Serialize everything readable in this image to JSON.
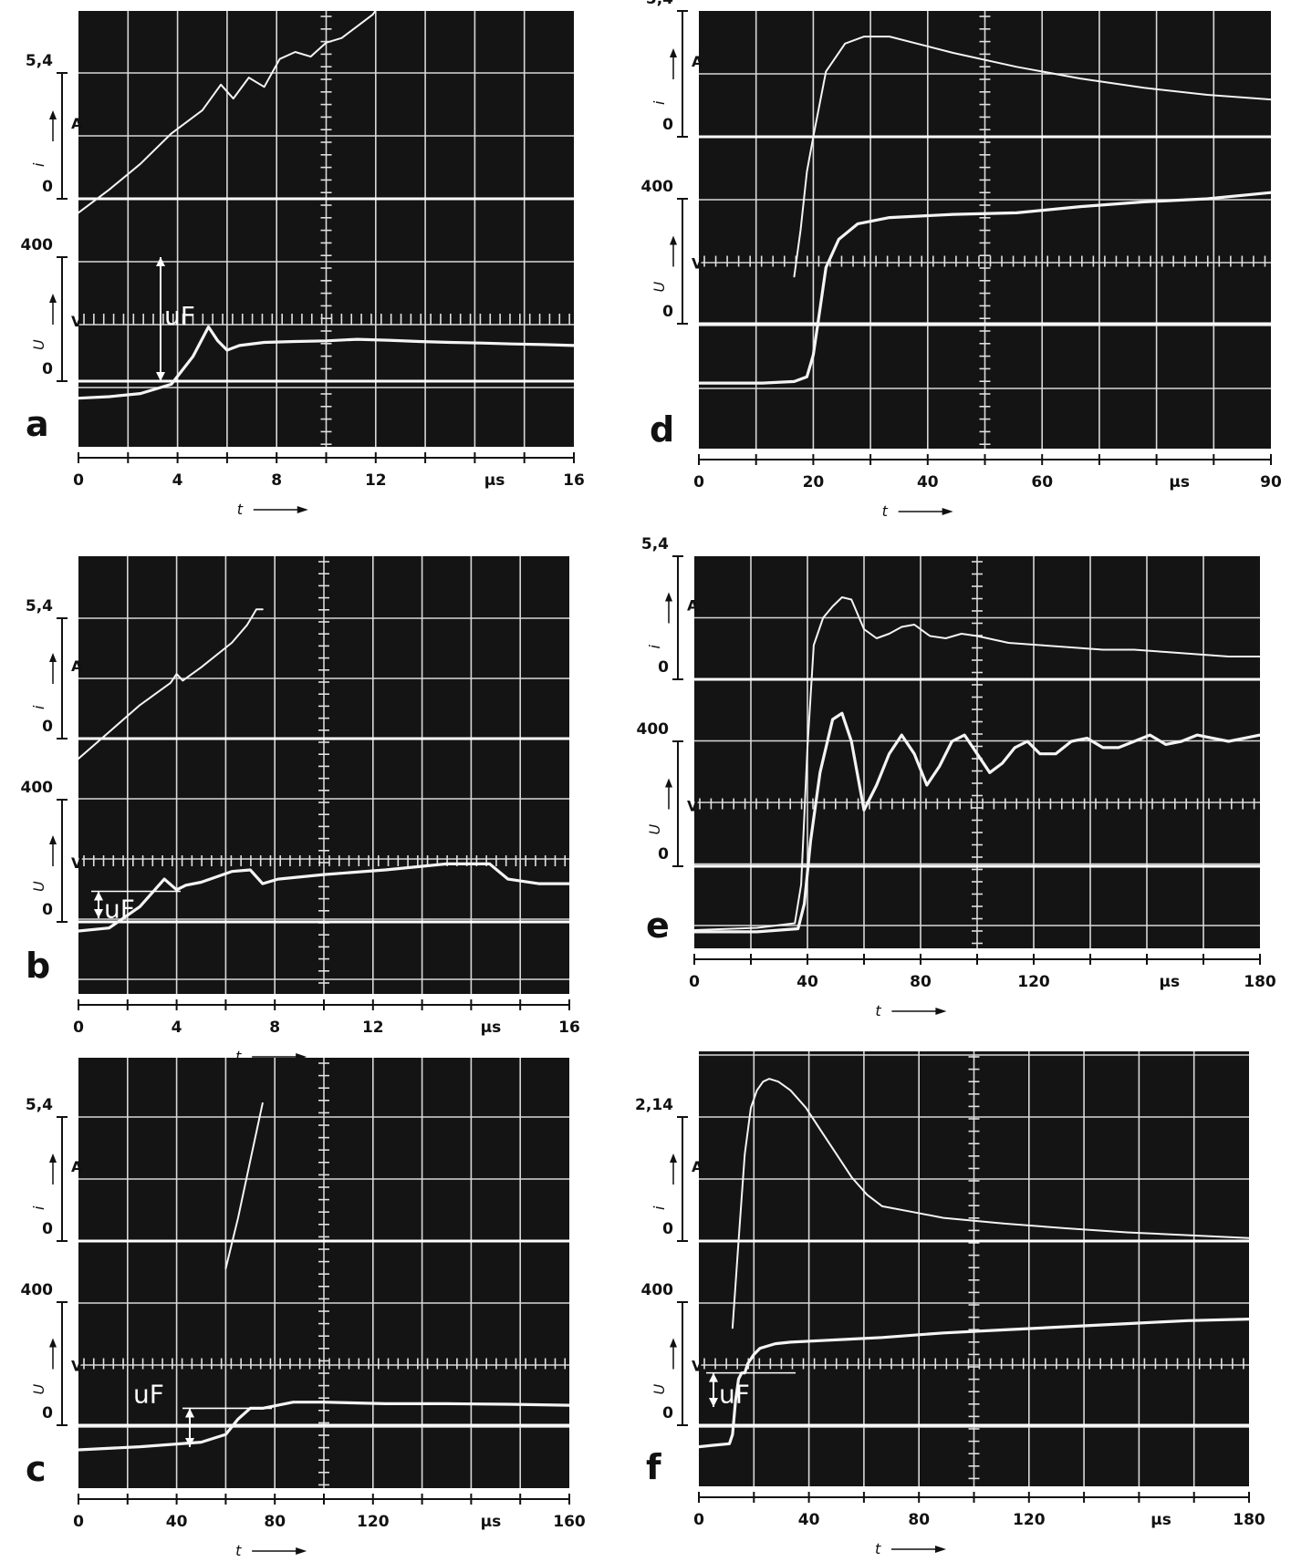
{
  "chart_data": [
    {
      "panel": "a",
      "type": "line",
      "x_ticks": [
        "0",
        "4",
        "8",
        "12",
        "16"
      ],
      "x_unit": "µs",
      "xlabel": "t",
      "xlim": [
        0,
        16
      ],
      "current_axis": {
        "label": "i",
        "unit": "A",
        "ticks": [
          "5,4",
          "0"
        ],
        "ylim": [
          0,
          7.0
        ]
      },
      "voltage_axis": {
        "label": "U",
        "unit": "V",
        "ticks": [
          "400",
          "0"
        ],
        "ylim": [
          -100,
          425
        ]
      },
      "annotation": "uF",
      "series": [
        {
          "quantity": "current",
          "x": [
            0,
            1,
            2,
            3,
            4,
            4.6,
            5,
            5.5,
            6,
            6.5,
            7,
            7.5,
            8,
            8.5,
            9,
            9.5,
            10
          ],
          "y": [
            -0.6,
            0.4,
            1.5,
            2.8,
            3.8,
            4.9,
            4.3,
            5.2,
            4.8,
            6.0,
            6.3,
            6.1,
            6.7,
            6.9,
            7.4,
            7.9,
            8.8
          ]
        },
        {
          "quantity": "voltage",
          "x": [
            0,
            1,
            2,
            3,
            3.7,
            4.2,
            4.5,
            4.8,
            5.2,
            6,
            7,
            8,
            9,
            10,
            11,
            12,
            13,
            14,
            15,
            16
          ],
          "y": [
            -55,
            -50,
            -40,
            -10,
            80,
            175,
            130,
            100,
            115,
            125,
            128,
            130,
            135,
            132,
            128,
            125,
            123,
            120,
            118,
            115
          ]
        }
      ]
    },
    {
      "panel": "b",
      "type": "line",
      "x_ticks": [
        "0",
        "4",
        "8",
        "12",
        "16"
      ],
      "x_unit": "µs",
      "xlabel": "t",
      "xlim": [
        0,
        16
      ],
      "current_axis": {
        "label": "i",
        "unit": "A",
        "ticks": [
          "5,4",
          "0"
        ],
        "ylim": [
          0,
          7.0
        ]
      },
      "voltage_axis": {
        "label": "U",
        "unit": "V",
        "ticks": [
          "400",
          "0"
        ],
        "ylim": [
          -100,
          425
        ]
      },
      "annotation": "uF",
      "series": [
        {
          "quantity": "current",
          "x": [
            0,
            1,
            2,
            3,
            3.2,
            3.4,
            4,
            5,
            5.5,
            5.8,
            6
          ],
          "y": [
            -0.9,
            0.3,
            1.5,
            2.5,
            2.9,
            2.6,
            3.2,
            4.3,
            5.1,
            5.8,
            5.8
          ]
        },
        {
          "quantity": "voltage",
          "x": [
            0,
            1,
            2,
            2.8,
            3.2,
            3.5,
            4,
            5,
            5.6,
            6,
            6.5,
            8,
            10,
            12,
            13.4,
            14,
            15,
            16
          ],
          "y": [
            -30,
            -20,
            50,
            140,
            105,
            120,
            130,
            165,
            170,
            125,
            140,
            155,
            170,
            190,
            190,
            140,
            125,
            125
          ]
        }
      ]
    },
    {
      "panel": "c",
      "type": "line",
      "x_ticks": [
        "0",
        "40",
        "80",
        "120",
        "160"
      ],
      "x_unit": "µs",
      "xlabel": "t",
      "xlim": [
        0,
        160
      ],
      "current_axis": {
        "label": "i",
        "unit": "A",
        "ticks": [
          "5,4",
          "0"
        ],
        "ylim": [
          0,
          7.0
        ]
      },
      "voltage_axis": {
        "label": "U",
        "unit": "V",
        "ticks": [
          "400",
          "0"
        ],
        "ylim": [
          -100,
          425
        ]
      },
      "annotation": "uF",
      "series": [
        {
          "quantity": "current",
          "x": [
            48,
            52,
            56,
            60
          ],
          "y": [
            -1.2,
            1.0,
            3.5,
            6.0
          ]
        },
        {
          "quantity": "voltage",
          "x": [
            0,
            20,
            40,
            48,
            52,
            56,
            60,
            70,
            80,
            100,
            120,
            140,
            160
          ],
          "y": [
            -80,
            -70,
            -55,
            -30,
            20,
            55,
            55,
            75,
            75,
            70,
            70,
            68,
            65
          ]
        }
      ]
    },
    {
      "panel": "d",
      "type": "line",
      "x_ticks": [
        "0",
        "20",
        "40",
        "60",
        "90"
      ],
      "x_unit": "µs",
      "xlabel": "t",
      "xlim": [
        0,
        90
      ],
      "current_axis": {
        "label": "i",
        "unit": "A",
        "ticks": [
          "5,4",
          "0"
        ],
        "ylim": [
          0,
          7.0
        ]
      },
      "voltage_axis": {
        "label": "U",
        "unit": "V",
        "ticks": [
          "400",
          "0"
        ],
        "ylim": [
          -100,
          425
        ]
      },
      "series": [
        {
          "quantity": "current",
          "x": [
            15,
            16,
            17,
            18,
            20,
            23,
            26,
            30,
            40,
            50,
            60,
            70,
            80,
            90
          ],
          "y": [
            -6.0,
            -4.0,
            -1.5,
            0.0,
            2.8,
            4.0,
            4.3,
            4.3,
            3.6,
            3.0,
            2.5,
            2.1,
            1.8,
            1.6
          ]
        },
        {
          "quantity": "voltage",
          "x": [
            0,
            5,
            10,
            15,
            17,
            18,
            19,
            20,
            22,
            25,
            30,
            40,
            50,
            60,
            70,
            80,
            90
          ],
          "y": [
            -190,
            -190,
            -190,
            -185,
            -170,
            -100,
            40,
            180,
            270,
            320,
            340,
            350,
            355,
            375,
            390,
            400,
            420
          ]
        }
      ]
    },
    {
      "panel": "e",
      "type": "line",
      "x_ticks": [
        "0",
        "40",
        "80",
        "120",
        "180"
      ],
      "x_unit": "µs",
      "xlabel": "t",
      "xlim": [
        0,
        180
      ],
      "current_axis": {
        "label": "i",
        "unit": "A",
        "ticks": [
          "5,4",
          "0"
        ],
        "ylim": [
          0,
          7.0
        ]
      },
      "voltage_axis": {
        "label": "U",
        "unit": "V",
        "ticks": [
          "400",
          "0"
        ],
        "ylim": [
          -100,
          425
        ]
      },
      "series": [
        {
          "quantity": "current",
          "x": [
            0,
            20,
            32,
            34,
            36,
            38,
            41,
            44,
            47,
            50,
            54,
            58,
            62,
            66,
            70,
            75,
            80,
            85,
            90,
            100,
            110,
            120,
            130,
            140,
            150,
            160,
            170,
            180
          ],
          "y": [
            -11.0,
            -10.9,
            -10.7,
            -9.0,
            -3.0,
            1.5,
            2.7,
            3.2,
            3.6,
            3.5,
            2.2,
            1.8,
            2.0,
            2.3,
            2.4,
            1.9,
            1.8,
            2.0,
            1.9,
            1.6,
            1.5,
            1.4,
            1.3,
            1.3,
            1.2,
            1.1,
            1.0,
            1.0
          ]
        },
        {
          "quantity": "voltage",
          "x": [
            0,
            20,
            33,
            35,
            37,
            40,
            44,
            47,
            50,
            54,
            58,
            62,
            66,
            70,
            74,
            78,
            82,
            86,
            90,
            94,
            98,
            102,
            106,
            110,
            115,
            120,
            125,
            130,
            135,
            140,
            145,
            150,
            155,
            160,
            165,
            170,
            175,
            180
          ],
          "y": [
            -210,
            -210,
            -200,
            -120,
            80,
            300,
            470,
            490,
            400,
            180,
            260,
            360,
            420,
            360,
            260,
            320,
            400,
            420,
            360,
            300,
            330,
            380,
            400,
            360,
            360,
            400,
            410,
            380,
            380,
            400,
            420,
            390,
            400,
            420,
            410,
            400,
            410,
            420
          ]
        }
      ]
    },
    {
      "panel": "f",
      "type": "line",
      "x_ticks": [
        "0",
        "40",
        "80",
        "120",
        "180"
      ],
      "x_unit": "µs",
      "xlabel": "t",
      "xlim": [
        0,
        180
      ],
      "current_axis": {
        "label": "i",
        "unit": "A",
        "ticks": [
          "2,14",
          "0"
        ],
        "ylim": [
          0,
          2.8
        ]
      },
      "voltage_axis": {
        "label": "U",
        "unit": "V",
        "ticks": [
          "400",
          "0"
        ],
        "ylim": [
          -100,
          425
        ]
      },
      "annotation": "uF",
      "series": [
        {
          "quantity": "current",
          "x": [
            11,
            13,
            15,
            17,
            19,
            21,
            23,
            26,
            30,
            35,
            40,
            45,
            50,
            55,
            60,
            70,
            80,
            100,
            120,
            140,
            160,
            180
          ],
          "y": [
            -1.5,
            0.0,
            1.5,
            2.3,
            2.6,
            2.75,
            2.8,
            2.75,
            2.6,
            2.3,
            1.9,
            1.5,
            1.1,
            0.8,
            0.6,
            0.5,
            0.4,
            0.3,
            0.22,
            0.15,
            0.1,
            0.05
          ]
        },
        {
          "quantity": "voltage",
          "x": [
            0,
            5,
            10,
            11,
            12,
            13,
            14,
            15,
            16,
            18,
            20,
            25,
            30,
            40,
            50,
            60,
            80,
            100,
            120,
            140,
            160,
            180
          ],
          "y": [
            -70,
            -65,
            -60,
            -30,
            80,
            150,
            170,
            170,
            200,
            230,
            250,
            265,
            270,
            275,
            280,
            285,
            300,
            310,
            320,
            330,
            340,
            345
          ]
        }
      ]
    }
  ]
}
